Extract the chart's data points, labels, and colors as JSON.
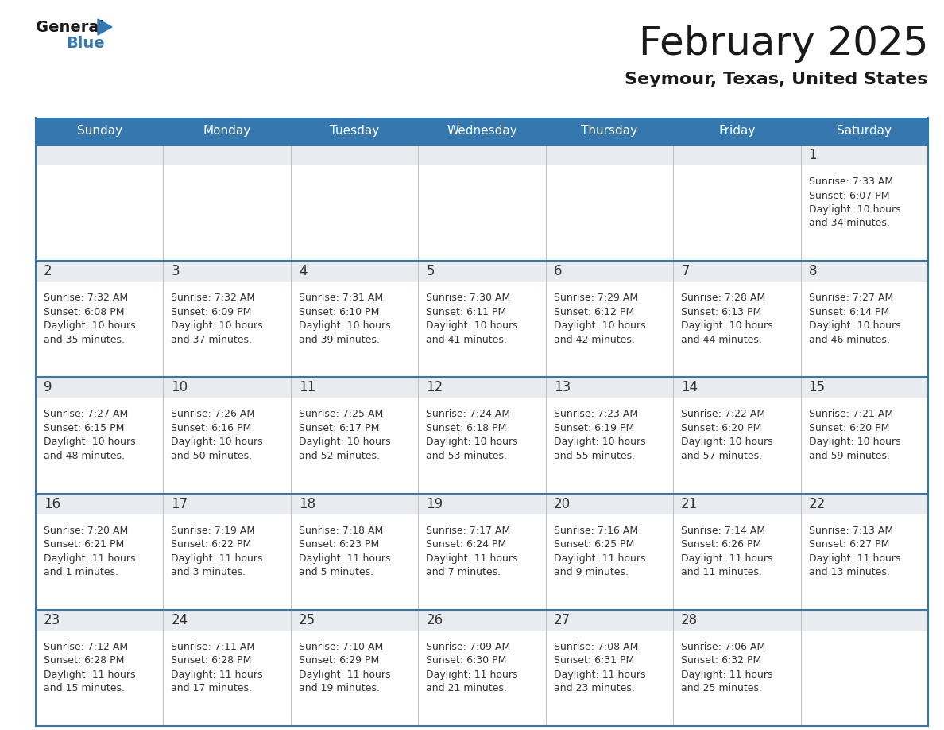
{
  "title": "February 2025",
  "subtitle": "Seymour, Texas, United States",
  "header_bg_color": "#3578b0",
  "header_text_color": "#ffffff",
  "cell_top_bg": "#e8ecf0",
  "cell_body_bg": "#ffffff",
  "border_color": "#3578b0",
  "grid_color": "#c0c0c0",
  "day_number_color": "#333333",
  "text_color": "#333333",
  "days_of_week": [
    "Sunday",
    "Monday",
    "Tuesday",
    "Wednesday",
    "Thursday",
    "Friday",
    "Saturday"
  ],
  "weeks": [
    [
      null,
      null,
      null,
      null,
      null,
      null,
      1
    ],
    [
      2,
      3,
      4,
      5,
      6,
      7,
      8
    ],
    [
      9,
      10,
      11,
      12,
      13,
      14,
      15
    ],
    [
      16,
      17,
      18,
      19,
      20,
      21,
      22
    ],
    [
      23,
      24,
      25,
      26,
      27,
      28,
      null
    ]
  ],
  "day_data": {
    "1": {
      "sunrise": "7:33 AM",
      "sunset": "6:07 PM",
      "daylight_hours": 10,
      "daylight_minutes": 34
    },
    "2": {
      "sunrise": "7:32 AM",
      "sunset": "6:08 PM",
      "daylight_hours": 10,
      "daylight_minutes": 35
    },
    "3": {
      "sunrise": "7:32 AM",
      "sunset": "6:09 PM",
      "daylight_hours": 10,
      "daylight_minutes": 37
    },
    "4": {
      "sunrise": "7:31 AM",
      "sunset": "6:10 PM",
      "daylight_hours": 10,
      "daylight_minutes": 39
    },
    "5": {
      "sunrise": "7:30 AM",
      "sunset": "6:11 PM",
      "daylight_hours": 10,
      "daylight_minutes": 41
    },
    "6": {
      "sunrise": "7:29 AM",
      "sunset": "6:12 PM",
      "daylight_hours": 10,
      "daylight_minutes": 42
    },
    "7": {
      "sunrise": "7:28 AM",
      "sunset": "6:13 PM",
      "daylight_hours": 10,
      "daylight_minutes": 44
    },
    "8": {
      "sunrise": "7:27 AM",
      "sunset": "6:14 PM",
      "daylight_hours": 10,
      "daylight_minutes": 46
    },
    "9": {
      "sunrise": "7:27 AM",
      "sunset": "6:15 PM",
      "daylight_hours": 10,
      "daylight_minutes": 48
    },
    "10": {
      "sunrise": "7:26 AM",
      "sunset": "6:16 PM",
      "daylight_hours": 10,
      "daylight_minutes": 50
    },
    "11": {
      "sunrise": "7:25 AM",
      "sunset": "6:17 PM",
      "daylight_hours": 10,
      "daylight_minutes": 52
    },
    "12": {
      "sunrise": "7:24 AM",
      "sunset": "6:18 PM",
      "daylight_hours": 10,
      "daylight_minutes": 53
    },
    "13": {
      "sunrise": "7:23 AM",
      "sunset": "6:19 PM",
      "daylight_hours": 10,
      "daylight_minutes": 55
    },
    "14": {
      "sunrise": "7:22 AM",
      "sunset": "6:20 PM",
      "daylight_hours": 10,
      "daylight_minutes": 57
    },
    "15": {
      "sunrise": "7:21 AM",
      "sunset": "6:20 PM",
      "daylight_hours": 10,
      "daylight_minutes": 59
    },
    "16": {
      "sunrise": "7:20 AM",
      "sunset": "6:21 PM",
      "daylight_hours": 11,
      "daylight_minutes": 1
    },
    "17": {
      "sunrise": "7:19 AM",
      "sunset": "6:22 PM",
      "daylight_hours": 11,
      "daylight_minutes": 3
    },
    "18": {
      "sunrise": "7:18 AM",
      "sunset": "6:23 PM",
      "daylight_hours": 11,
      "daylight_minutes": 5
    },
    "19": {
      "sunrise": "7:17 AM",
      "sunset": "6:24 PM",
      "daylight_hours": 11,
      "daylight_minutes": 7
    },
    "20": {
      "sunrise": "7:16 AM",
      "sunset": "6:25 PM",
      "daylight_hours": 11,
      "daylight_minutes": 9
    },
    "21": {
      "sunrise": "7:14 AM",
      "sunset": "6:26 PM",
      "daylight_hours": 11,
      "daylight_minutes": 11
    },
    "22": {
      "sunrise": "7:13 AM",
      "sunset": "6:27 PM",
      "daylight_hours": 11,
      "daylight_minutes": 13
    },
    "23": {
      "sunrise": "7:12 AM",
      "sunset": "6:28 PM",
      "daylight_hours": 11,
      "daylight_minutes": 15
    },
    "24": {
      "sunrise": "7:11 AM",
      "sunset": "6:28 PM",
      "daylight_hours": 11,
      "daylight_minutes": 17
    },
    "25": {
      "sunrise": "7:10 AM",
      "sunset": "6:29 PM",
      "daylight_hours": 11,
      "daylight_minutes": 19
    },
    "26": {
      "sunrise": "7:09 AM",
      "sunset": "6:30 PM",
      "daylight_hours": 11,
      "daylight_minutes": 21
    },
    "27": {
      "sunrise": "7:08 AM",
      "sunset": "6:31 PM",
      "daylight_hours": 11,
      "daylight_minutes": 23
    },
    "28": {
      "sunrise": "7:06 AM",
      "sunset": "6:32 PM",
      "daylight_hours": 11,
      "daylight_minutes": 25
    }
  }
}
